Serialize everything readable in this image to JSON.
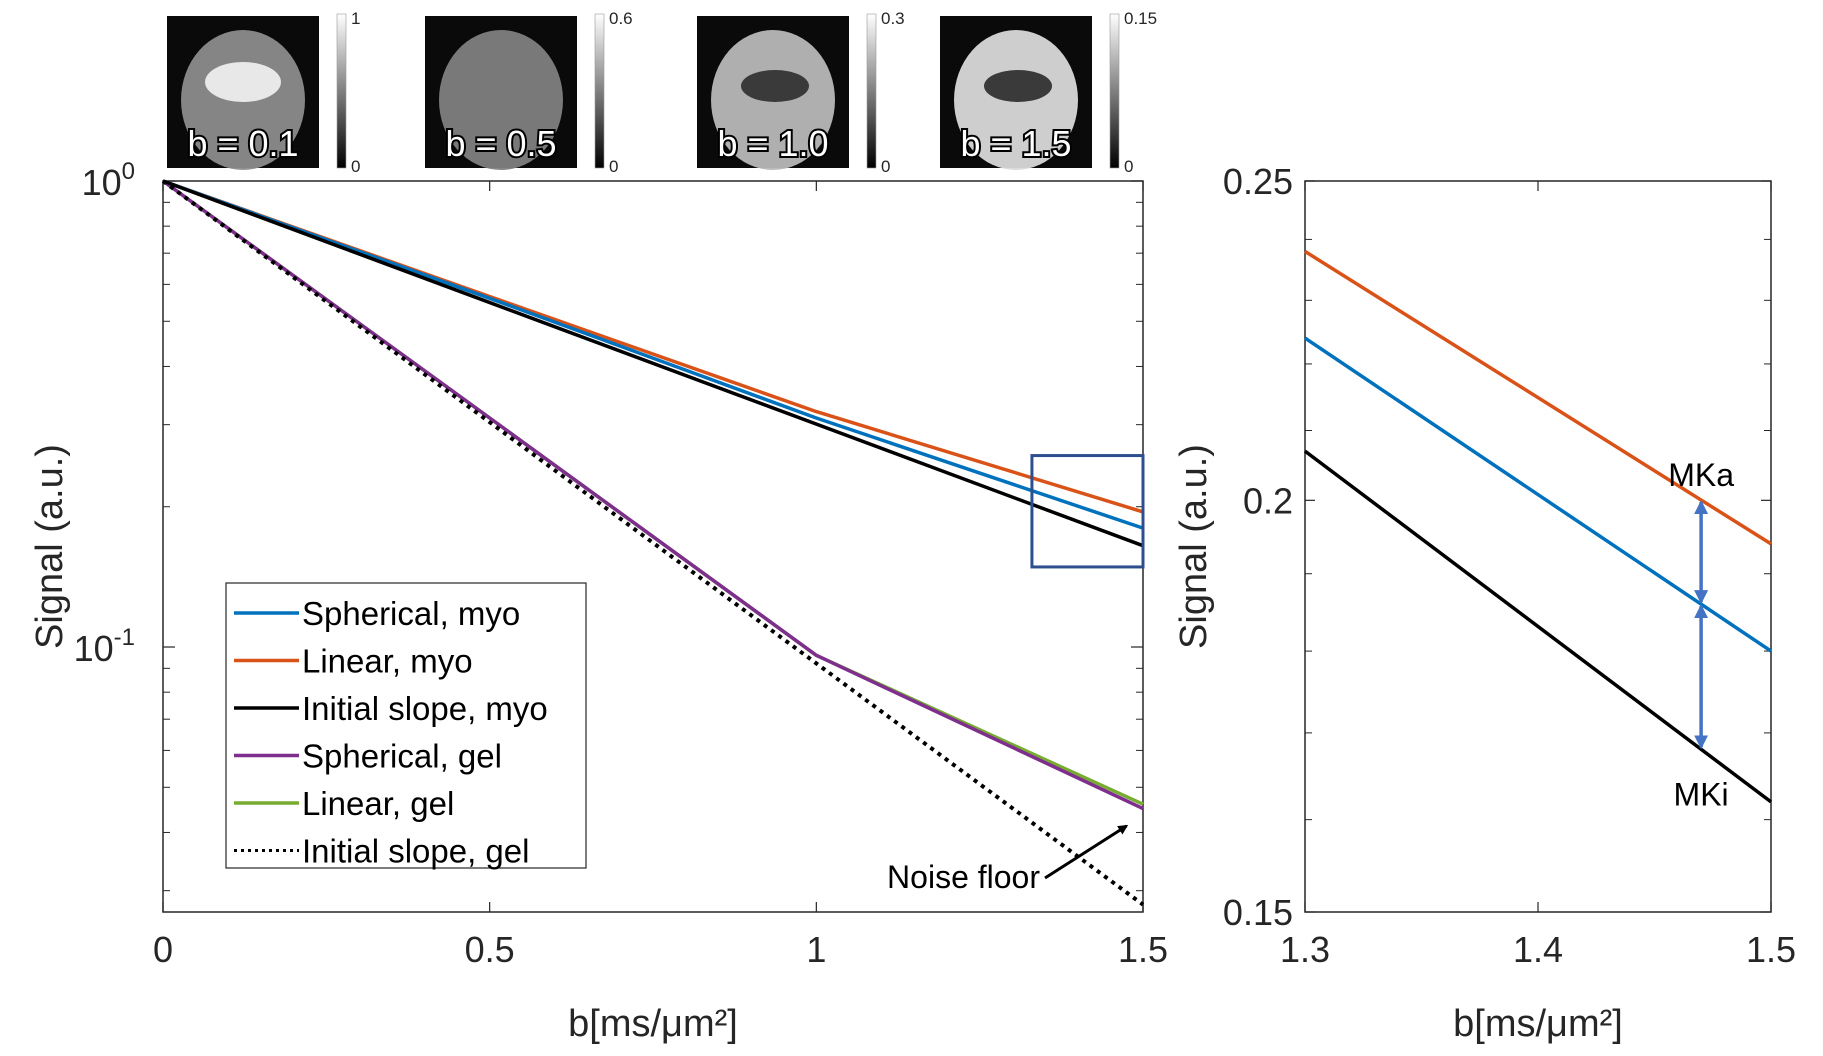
{
  "thumbnails": [
    {
      "label": "b = 0.1",
      "cb_max": "1",
      "cb_min": "0",
      "brightness": 0.55,
      "inner": "bright"
    },
    {
      "label": "b = 0.5",
      "cb_max": "0.6",
      "cb_min": "0",
      "brightness": 0.5,
      "inner": "flat"
    },
    {
      "label": "b = 1.0",
      "cb_max": "0.3",
      "cb_min": "0",
      "brightness": 0.72,
      "inner": "dark"
    },
    {
      "label": "b = 1.5",
      "cb_max": "0.15",
      "cb_min": "0",
      "brightness": 0.85,
      "inner": "dark"
    }
  ],
  "colors": {
    "spherical_myo": "#0072BD",
    "linear_myo": "#D95319",
    "initial_myo": "#000000",
    "spherical_gel": "#7E2F8E",
    "linear_gel": "#77AC30",
    "initial_gel": "#000000",
    "zoom_box": "#2E4F8F",
    "arrow": "#4472C4"
  },
  "chart_data": [
    {
      "type": "line",
      "title": "",
      "xlabel": "b[ms/μm²]",
      "ylabel": "Signal (a.u.)",
      "xlim": [
        0,
        1.5
      ],
      "ylim": [
        0.027,
        1.0
      ],
      "yscale": "log",
      "xticks": [
        0,
        0.5,
        1,
        1.5
      ],
      "xtick_labels": [
        "0",
        "0.5",
        "1",
        "1.5"
      ],
      "yticks": [
        1.0,
        0.1
      ],
      "ytick_labels": [
        {
          "base": "10",
          "exp": "0"
        },
        {
          "base": "10",
          "exp": "-1"
        }
      ],
      "legend_position": "bottom-left",
      "series": [
        {
          "name": "Spherical, myo",
          "key": "spherical_myo",
          "style": "solid",
          "x": [
            0,
            0.5,
            1,
            1.5
          ],
          "y": [
            1.0,
            0.56,
            0.31,
            0.18
          ]
        },
        {
          "name": "Linear, myo",
          "key": "linear_myo",
          "style": "solid",
          "x": [
            0,
            0.5,
            1,
            1.5
          ],
          "y": [
            1.0,
            0.565,
            0.32,
            0.195
          ]
        },
        {
          "name": "Initial slope, myo",
          "key": "initial_myo",
          "style": "solid",
          "x": [
            0,
            1.5
          ],
          "y": [
            1.0,
            0.165
          ]
        },
        {
          "name": "Spherical, gel",
          "key": "spherical_gel",
          "style": "solid",
          "x": [
            0,
            0.5,
            1,
            1.5
          ],
          "y": [
            1.0,
            0.31,
            0.096,
            0.045
          ]
        },
        {
          "name": "Linear, gel",
          "key": "linear_gel",
          "style": "solid",
          "x": [
            0,
            0.5,
            1,
            1.5
          ],
          "y": [
            1.0,
            0.31,
            0.096,
            0.046
          ]
        },
        {
          "name": "Initial slope, gel",
          "key": "initial_gel",
          "style": "dotted",
          "x": [
            0,
            1.5
          ],
          "y": [
            1.0,
            0.028
          ]
        }
      ],
      "annotations": [
        {
          "text": "Noise floor",
          "arrow_to": [
            1.49,
            0.04
          ]
        }
      ],
      "zoom_box": {
        "x": [
          1.33,
          1.5
        ],
        "y": [
          0.15,
          0.25
        ]
      }
    },
    {
      "type": "line",
      "title": "",
      "xlabel": "b[ms/μm²]",
      "ylabel": "Signal (a.u.)",
      "xlim": [
        1.3,
        1.5
      ],
      "ylim": [
        0.15,
        0.25
      ],
      "yscale": "log",
      "xticks": [
        1.3,
        1.4,
        1.5
      ],
      "xtick_labels": [
        "1.3",
        "1.4",
        "1.5"
      ],
      "yticks": [
        0.25,
        0.2,
        0.15
      ],
      "ytick_labels": [
        "0.25",
        "0.2",
        "0.15"
      ],
      "series": [
        {
          "name": "Linear, myo",
          "key": "linear_myo",
          "x": [
            1.3,
            1.5
          ],
          "y": [
            0.238,
            0.194
          ]
        },
        {
          "name": "Spherical, myo",
          "key": "spherical_myo",
          "x": [
            1.3,
            1.5
          ],
          "y": [
            0.224,
            0.18
          ]
        },
        {
          "name": "Initial slope, myo",
          "key": "initial_myo",
          "x": [
            1.3,
            1.5
          ],
          "y": [
            0.207,
            0.162
          ]
        }
      ],
      "annotations": [
        {
          "text": "MKa",
          "x": 1.47,
          "from": "linear_myo",
          "to": "spherical_myo"
        },
        {
          "text": "MKi",
          "x": 1.47,
          "from": "spherical_myo",
          "to": "initial_myo"
        }
      ]
    }
  ]
}
